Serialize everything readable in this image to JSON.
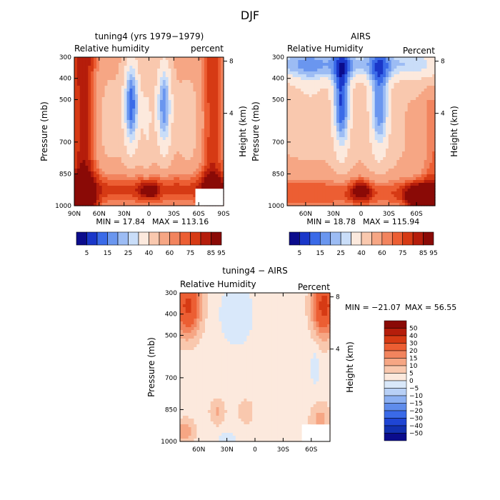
{
  "figure": {
    "title": "DJF"
  },
  "palettes": {
    "rh": [
      "#0b0c8c",
      "#1a37c9",
      "#3a6ae8",
      "#6a96ef",
      "#9cbcf4",
      "#c9ddf8",
      "#fce9dd",
      "#f9c8ae",
      "#f6a684",
      "#f2845e",
      "#ec5e33",
      "#d63a14",
      "#b51d0b",
      "#8a0a06"
    ],
    "diff": [
      "#8a0a06",
      "#b51d0b",
      "#d63a14",
      "#ec5e33",
      "#f2845e",
      "#f6a684",
      "#f9c8ae",
      "#fce9dd",
      "#d9e8fa",
      "#b8d0f6",
      "#8cb0f2",
      "#5f8ceb",
      "#3a6ae8",
      "#1f45d4",
      "#1230b0",
      "#0b0c8c"
    ]
  },
  "chart_data": [
    {
      "id": "model",
      "type": "heatmap",
      "title": "tuning4 (yrs 1979−1979)",
      "left_label": "Relative humidity",
      "right_label": "percent",
      "xlabel": "",
      "ylabel": "Pressure (mb)",
      "y2label": "Height (km)",
      "x_ticks": [
        "90N",
        "60N",
        "30N",
        "0",
        "30S",
        "60S",
        "90S"
      ],
      "x_tick_values": [
        90,
        60,
        30,
        0,
        -30,
        -60,
        -90
      ],
      "xlim": [
        90,
        -90
      ],
      "y_ticks": [
        "300",
        "400",
        "500",
        "700",
        "850",
        "1000"
      ],
      "y_tick_values": [
        300,
        400,
        500,
        700,
        850,
        1000
      ],
      "ylim": [
        300,
        1000
      ],
      "height_ticks": [
        "8",
        "4"
      ],
      "height_tick_values": [
        8,
        4
      ],
      "min_label": "MIN = 17.84",
      "max_label": "MAX = 113.16",
      "min": 17.84,
      "max": 113.16,
      "levels": [
        5,
        10,
        15,
        20,
        25,
        30,
        40,
        50,
        60,
        65,
        70,
        75,
        80,
        85,
        90,
        95
      ],
      "colorbar_labels": [
        "5",
        "15",
        "25",
        "40",
        "60",
        "75",
        "85",
        "95"
      ],
      "missing_box": {
        "lat": [
          -56,
          -90
        ],
        "p": [
          920,
          1000
        ]
      }
    },
    {
      "id": "airs",
      "type": "heatmap",
      "title": "AIRS",
      "left_label": "Relative Humidity",
      "right_label": "Percent",
      "xlabel": "",
      "ylabel": "Pressure (mb)",
      "y2label": "Height (km)",
      "x_ticks": [
        "60N",
        "30N",
        "0",
        "30S",
        "60S"
      ],
      "x_tick_values": [
        60,
        30,
        0,
        -30,
        -60
      ],
      "xlim": [
        80,
        -80
      ],
      "y_ticks": [
        "300",
        "400",
        "500",
        "700",
        "850",
        "1000"
      ],
      "y_tick_values": [
        300,
        400,
        500,
        700,
        850,
        1000
      ],
      "ylim": [
        300,
        1000
      ],
      "height_ticks": [
        "8",
        "4"
      ],
      "height_tick_values": [
        8,
        4
      ],
      "min_label": "MIN =  18.78",
      "max_label": "MAX = 115.94",
      "min": 18.78,
      "max": 115.94,
      "levels": [
        5,
        10,
        15,
        20,
        25,
        30,
        40,
        50,
        60,
        65,
        70,
        75,
        80,
        85,
        90,
        95
      ],
      "colorbar_labels": [
        "5",
        "15",
        "25",
        "40",
        "60",
        "75",
        "85",
        "95"
      ]
    },
    {
      "id": "diff",
      "type": "heatmap",
      "title": "tuning4 − AIRS",
      "left_label": "Relative Humidity",
      "right_label": "Percent",
      "xlabel": "",
      "ylabel": "Pressure (mb)",
      "y2label": "Height (km)",
      "x_ticks": [
        "60N",
        "30N",
        "0",
        "30S",
        "60S"
      ],
      "x_tick_values": [
        60,
        30,
        0,
        -30,
        -60
      ],
      "xlim": [
        80,
        -80
      ],
      "y_ticks": [
        "300",
        "400",
        "500",
        "700",
        "850",
        "1000"
      ],
      "y_tick_values": [
        300,
        400,
        500,
        700,
        850,
        1000
      ],
      "ylim": [
        300,
        1000
      ],
      "height_ticks": [
        "8",
        "4"
      ],
      "height_tick_values": [
        8,
        4
      ],
      "min_label": "MIN = −21.07",
      "max_label": "MAX =   56.55",
      "min": -21.07,
      "max": 56.55,
      "levels": [
        50,
        40,
        30,
        20,
        15,
        10,
        5,
        0,
        -5,
        -10,
        -15,
        -20,
        -30,
        -40,
        -50
      ],
      "colorbar_labels": [
        "50",
        "40",
        "30",
        "20",
        "15",
        "10",
        "5",
        "0",
        "−5",
        "−10",
        "−15",
        "−20",
        "−30",
        "−40",
        "−50"
      ],
      "missing_box": {
        "lat": [
          -50,
          -80
        ],
        "p": [
          920,
          1000
        ]
      }
    }
  ]
}
